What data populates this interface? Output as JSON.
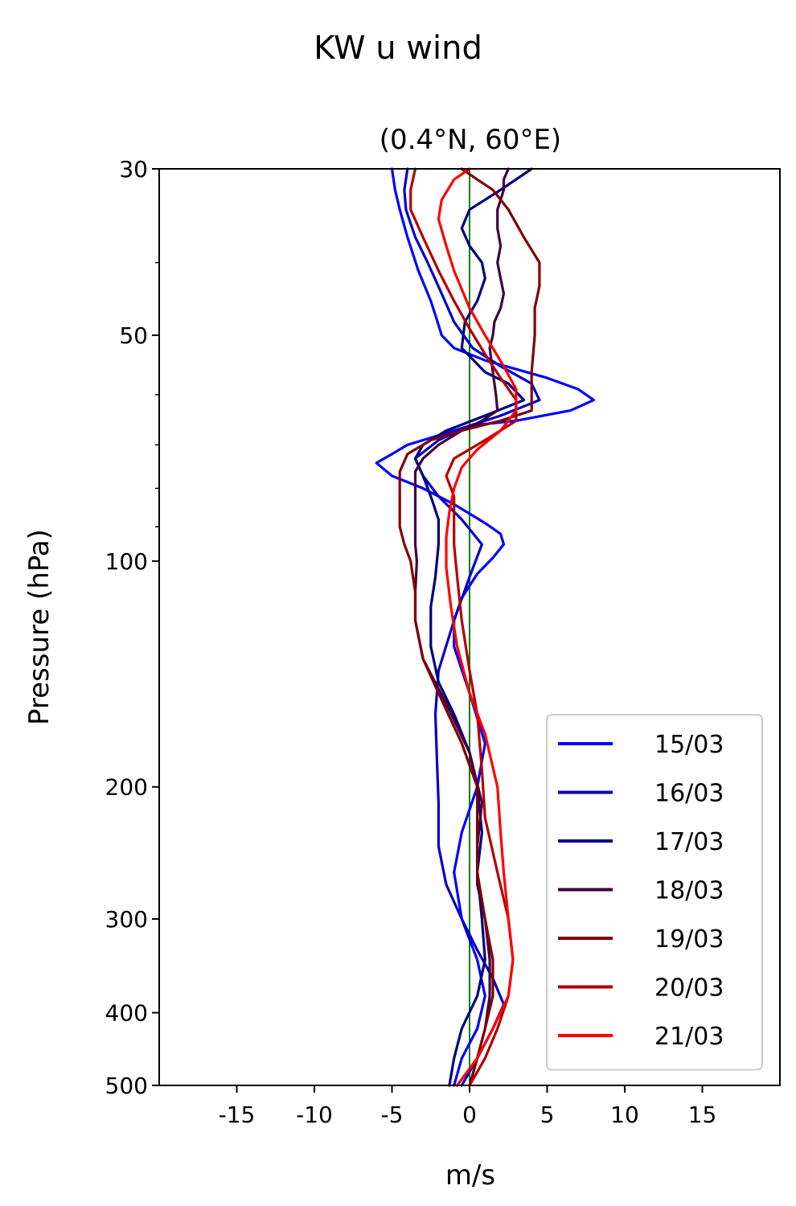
{
  "figure": {
    "suptitle": "KW u wind",
    "title": "(0.4°N, 60°E)"
  },
  "chart_data": {
    "type": "line",
    "title": "(0.4°N, 60°E)",
    "xlabel": "m/s",
    "ylabel": "Pressure (hPa)",
    "xlim": [
      -20,
      20
    ],
    "ylim": [
      500,
      30
    ],
    "y_scale": "log",
    "x_ticks": [
      -15,
      -10,
      -5,
      0,
      5,
      10,
      15
    ],
    "x_tick_labels": [
      "-15",
      "-10",
      "-5",
      "0",
      "5",
      "10",
      "15"
    ],
    "y_ticks": [
      30,
      50,
      100,
      200,
      300,
      400,
      500
    ],
    "y_tick_labels": [
      "30",
      "50",
      "100",
      "200",
      "300",
      "400",
      "500"
    ],
    "y_minor_ticks": [
      40,
      60,
      70,
      80,
      90
    ],
    "grid": false,
    "legend_position": "lower-right",
    "reference_line": {
      "x": 0,
      "color": "#008000"
    },
    "series": [
      {
        "name": "15/03",
        "color": "#0000ff",
        "points": [
          [
            -5,
            30
          ],
          [
            -4.8,
            32
          ],
          [
            -4.5,
            34
          ],
          [
            -4,
            37
          ],
          [
            -3.3,
            41
          ],
          [
            -2.5,
            45
          ],
          [
            -2.2,
            47
          ],
          [
            -1.8,
            50
          ],
          [
            -1,
            52
          ],
          [
            1,
            54
          ],
          [
            5,
            57
          ],
          [
            7,
            59
          ],
          [
            8,
            61
          ],
          [
            6.5,
            63
          ],
          [
            3,
            65
          ],
          [
            0,
            66
          ],
          [
            -2,
            68
          ],
          [
            -4,
            70
          ],
          [
            -5,
            72
          ],
          [
            -6,
            74
          ],
          [
            -5,
            77
          ],
          [
            -3,
            80
          ],
          [
            -1,
            84
          ],
          [
            1,
            89
          ],
          [
            2,
            92
          ],
          [
            2.2,
            95
          ],
          [
            1.5,
            99
          ],
          [
            0.5,
            104
          ],
          [
            -0.5,
            112
          ],
          [
            -1,
            120
          ],
          [
            -1,
            130
          ],
          [
            0,
            150
          ],
          [
            1,
            175
          ],
          [
            0.5,
            200
          ],
          [
            -0.5,
            230
          ],
          [
            -1,
            260
          ],
          [
            -0.5,
            300
          ],
          [
            0.5,
            340
          ],
          [
            1,
            380
          ],
          [
            0.5,
            420
          ],
          [
            -0.5,
            460
          ],
          [
            -1,
            500
          ]
        ]
      },
      {
        "name": "16/03",
        "color": "#0000cc",
        "points": [
          [
            -4,
            30
          ],
          [
            -4.2,
            32
          ],
          [
            -4.1,
            34
          ],
          [
            -3.5,
            37
          ],
          [
            -2.7,
            40
          ],
          [
            -1.8,
            44
          ],
          [
            -1,
            48
          ],
          [
            0.2,
            52
          ],
          [
            2,
            55
          ],
          [
            4,
            58
          ],
          [
            4.5,
            61
          ],
          [
            2,
            64
          ],
          [
            0,
            66
          ],
          [
            -2,
            69
          ],
          [
            -3.5,
            73
          ],
          [
            -3,
            77
          ],
          [
            -2,
            82
          ],
          [
            -0.5,
            88
          ],
          [
            0.8,
            95
          ],
          [
            0,
            105
          ],
          [
            -1,
            120
          ],
          [
            -2,
            140
          ],
          [
            -2.2,
            160
          ],
          [
            -2.1,
            185
          ],
          [
            -2,
            210
          ],
          [
            -2,
            240
          ],
          [
            -1.5,
            270
          ],
          [
            -0.5,
            300
          ],
          [
            0.5,
            330
          ],
          [
            1.5,
            360
          ],
          [
            2.2,
            390
          ],
          [
            1.5,
            420
          ],
          [
            0.5,
            460
          ],
          [
            -0.5,
            500
          ]
        ]
      },
      {
        "name": "17/03",
        "color": "#000080",
        "points": [
          [
            4,
            30
          ],
          [
            2,
            32
          ],
          [
            0,
            34
          ],
          [
            -0.5,
            36
          ],
          [
            0,
            38
          ],
          [
            0.8,
            40
          ],
          [
            1,
            42
          ],
          [
            0.5,
            45
          ],
          [
            -0.3,
            48
          ],
          [
            -0.5,
            52
          ],
          [
            1,
            56
          ],
          [
            2.5,
            58
          ],
          [
            3.5,
            61
          ],
          [
            1,
            64
          ],
          [
            -1.5,
            67
          ],
          [
            -3,
            70
          ],
          [
            -3.5,
            73
          ],
          [
            -3,
            77
          ],
          [
            -2.5,
            82
          ],
          [
            -2,
            88
          ],
          [
            -2,
            95
          ],
          [
            -2.2,
            105
          ],
          [
            -2.5,
            115
          ],
          [
            -2.5,
            130
          ],
          [
            -2,
            145
          ],
          [
            -1,
            160
          ],
          [
            0,
            180
          ],
          [
            0.5,
            200
          ],
          [
            0.8,
            230
          ],
          [
            0.5,
            260
          ],
          [
            0.8,
            300
          ],
          [
            1,
            340
          ],
          [
            0.5,
            380
          ],
          [
            -0.5,
            420
          ],
          [
            -1,
            460
          ],
          [
            -1.3,
            500
          ]
        ]
      },
      {
        "name": "18/03",
        "color": "#400040",
        "points": [
          [
            2.5,
            30
          ],
          [
            2.2,
            31
          ],
          [
            2.2,
            32
          ],
          [
            2,
            33
          ],
          [
            1.8,
            34
          ],
          [
            1.8,
            36
          ],
          [
            2,
            38
          ],
          [
            1.8,
            40
          ],
          [
            2,
            42
          ],
          [
            2.2,
            44
          ],
          [
            2,
            46
          ],
          [
            1.6,
            48
          ],
          [
            1.5,
            50
          ],
          [
            1.3,
            52
          ],
          [
            1.5,
            56
          ],
          [
            1.7,
            60
          ],
          [
            1.8,
            63
          ],
          [
            0.8,
            65
          ],
          [
            -0.5,
            67
          ],
          [
            -2,
            70
          ],
          [
            -3,
            73
          ],
          [
            -3.5,
            76
          ],
          [
            -3.5,
            80
          ],
          [
            -3.5,
            85
          ],
          [
            -3.5,
            90
          ],
          [
            -3.5,
            95
          ],
          [
            -3.4,
            100
          ],
          [
            -3.5,
            110
          ],
          [
            -3.5,
            120
          ],
          [
            -3,
            135
          ],
          [
            -1.5,
            155
          ],
          [
            0,
            180
          ],
          [
            0.8,
            210
          ],
          [
            0.5,
            240
          ],
          [
            0.5,
            270
          ],
          [
            1,
            300
          ],
          [
            1.3,
            340
          ],
          [
            1.3,
            380
          ],
          [
            1,
            420
          ],
          [
            0.5,
            460
          ],
          [
            0,
            500
          ]
        ]
      },
      {
        "name": "19/03",
        "color": "#800000",
        "points": [
          [
            -0.5,
            30
          ],
          [
            0.5,
            31
          ],
          [
            1.5,
            32
          ],
          [
            2.5,
            34
          ],
          [
            3.5,
            37
          ],
          [
            4.5,
            40
          ],
          [
            4.5,
            43
          ],
          [
            4.2,
            46
          ],
          [
            4.2,
            50
          ],
          [
            4.1,
            53
          ],
          [
            4,
            56
          ],
          [
            4,
            60
          ],
          [
            4,
            63
          ],
          [
            2,
            65
          ],
          [
            -0.5,
            67
          ],
          [
            -2.5,
            69
          ],
          [
            -4,
            72
          ],
          [
            -4.5,
            76
          ],
          [
            -4.5,
            80
          ],
          [
            -4.5,
            85
          ],
          [
            -4.5,
            90
          ],
          [
            -4.2,
            95
          ],
          [
            -3.8,
            100
          ],
          [
            -3.5,
            110
          ],
          [
            -3.5,
            120
          ],
          [
            -3,
            135
          ],
          [
            -2,
            150
          ],
          [
            -0.5,
            175
          ],
          [
            0.5,
            200
          ],
          [
            0.5,
            230
          ],
          [
            0.5,
            260
          ],
          [
            1,
            300
          ],
          [
            1.5,
            340
          ],
          [
            1.5,
            380
          ],
          [
            1,
            420
          ],
          [
            0.5,
            460
          ],
          [
            0,
            500
          ]
        ]
      },
      {
        "name": "20/03",
        "color": "#b20000",
        "points": [
          [
            -3.5,
            30
          ],
          [
            -3.8,
            32
          ],
          [
            -3.8,
            34
          ],
          [
            -3,
            37
          ],
          [
            -2,
            41
          ],
          [
            -1,
            45
          ],
          [
            0,
            49
          ],
          [
            1,
            53
          ],
          [
            2,
            57
          ],
          [
            3,
            61
          ],
          [
            3,
            65
          ],
          [
            1,
            69
          ],
          [
            -1,
            73
          ],
          [
            -1.5,
            77
          ],
          [
            -1,
            82
          ],
          [
            -1,
            88
          ],
          [
            -1,
            95
          ],
          [
            -0.8,
            105
          ],
          [
            -0.5,
            120
          ],
          [
            0,
            140
          ],
          [
            0.5,
            160
          ],
          [
            0.8,
            190
          ],
          [
            1,
            220
          ],
          [
            1.8,
            260
          ],
          [
            2.5,
            300
          ],
          [
            2.8,
            340
          ],
          [
            2.5,
            380
          ],
          [
            1.8,
            420
          ],
          [
            1,
            460
          ],
          [
            0,
            500
          ]
        ]
      },
      {
        "name": "21/03",
        "color": "#ff0000",
        "points": [
          [
            0,
            30
          ],
          [
            -1,
            31
          ],
          [
            -1.8,
            33
          ],
          [
            -2,
            35
          ],
          [
            -1.5,
            38
          ],
          [
            -1,
            41
          ],
          [
            0,
            46
          ],
          [
            1,
            50
          ],
          [
            2.2,
            55
          ],
          [
            3,
            59
          ],
          [
            3,
            63
          ],
          [
            2,
            67
          ],
          [
            0.5,
            71
          ],
          [
            -0.5,
            75
          ],
          [
            -1,
            80
          ],
          [
            -1.3,
            86
          ],
          [
            -1.5,
            93
          ],
          [
            -1.5,
            102
          ],
          [
            -1.2,
            115
          ],
          [
            -0.8,
            130
          ],
          [
            0,
            150
          ],
          [
            1,
            170
          ],
          [
            1.8,
            200
          ],
          [
            2,
            230
          ],
          [
            2.2,
            260
          ],
          [
            2.5,
            300
          ],
          [
            2.8,
            340
          ],
          [
            2.5,
            380
          ],
          [
            1.5,
            420
          ],
          [
            0.5,
            460
          ],
          [
            -0.8,
            500
          ]
        ]
      }
    ]
  }
}
